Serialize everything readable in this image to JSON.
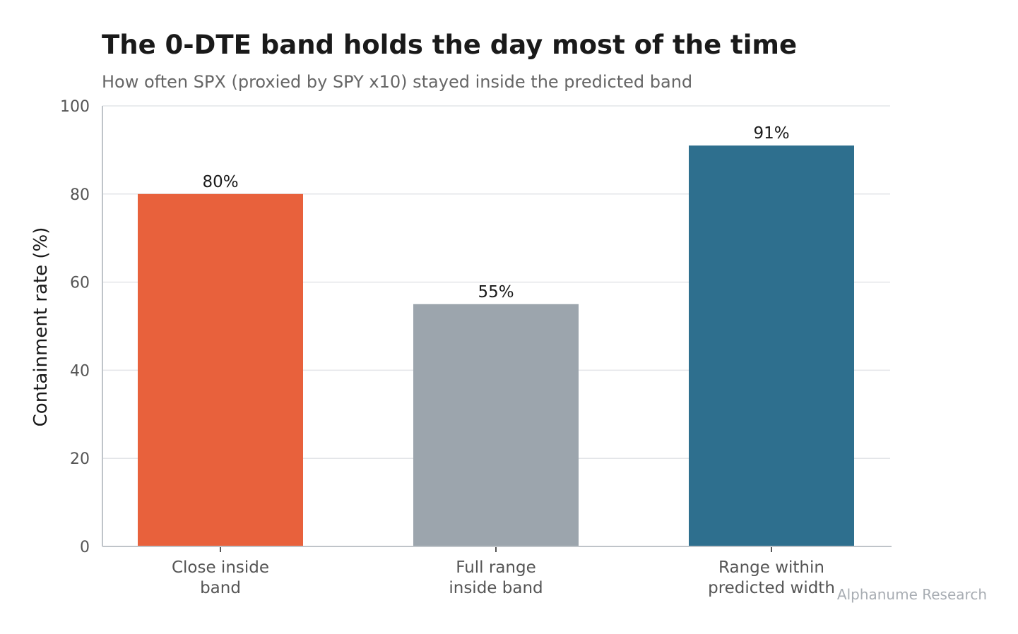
{
  "chart_data": {
    "type": "bar",
    "title": "The 0-DTE band holds the day most of the time",
    "subtitle": "How often SPX (proxied by SPY x10) stayed inside the predicted band",
    "xlabel": "",
    "ylabel": "Containment rate (%)",
    "ylim": [
      0,
      100
    ],
    "yticks": [
      0,
      20,
      40,
      60,
      80,
      100
    ],
    "grid": true,
    "categories": [
      [
        "Close inside",
        "band"
      ],
      [
        "Full range",
        "inside band"
      ],
      [
        "Range within",
        "predicted width"
      ]
    ],
    "values": [
      80,
      55,
      91
    ],
    "data_labels": [
      "80%",
      "55%",
      "91%"
    ],
    "colors": [
      "#e8613c",
      "#9ca5ad",
      "#2e6f8e"
    ],
    "source": "Alphanume Research"
  }
}
